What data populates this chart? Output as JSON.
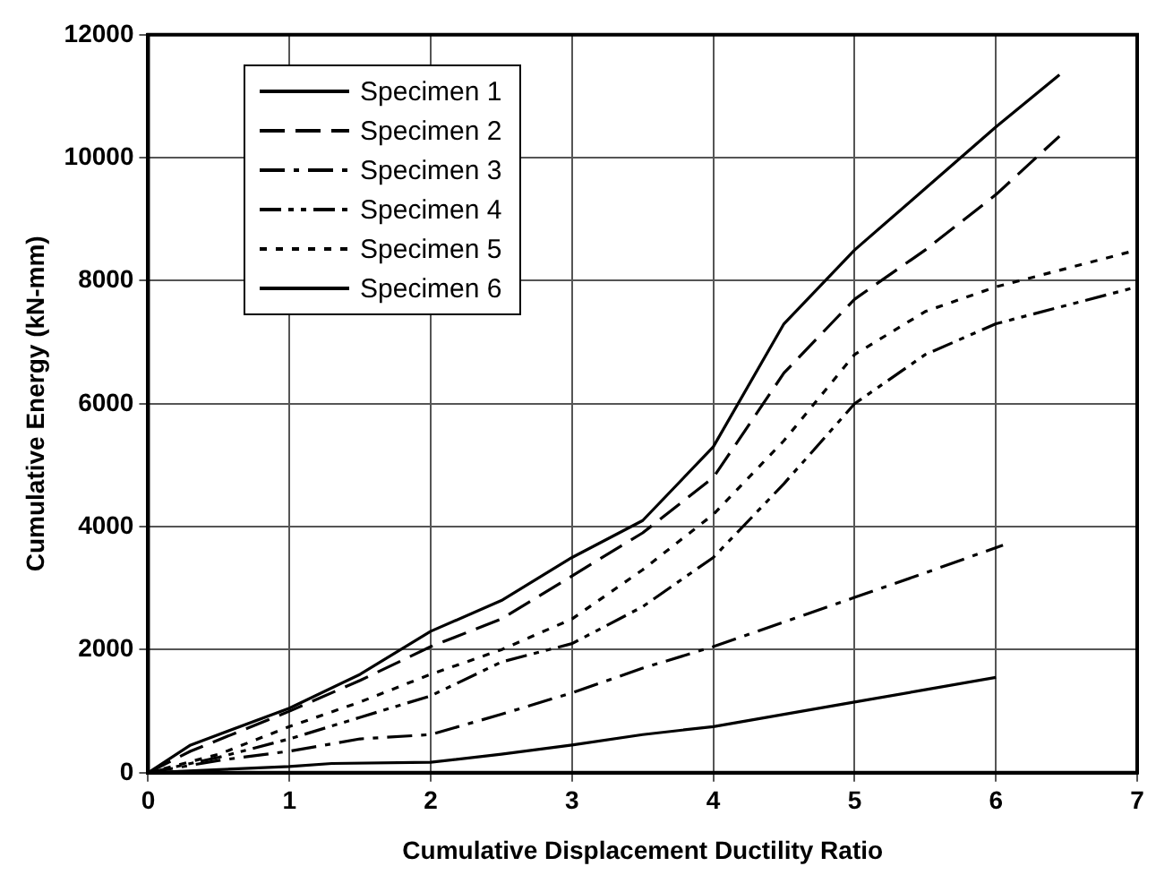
{
  "chart_data": {
    "type": "line",
    "xlabel": "Cumulative Displacement Ductility Ratio",
    "ylabel": "Cumulative Energy (kN-mm)",
    "xlim": [
      0,
      7
    ],
    "xticks": [
      0,
      1,
      2,
      3,
      4,
      5,
      6,
      7
    ],
    "ylim": [
      0,
      12000
    ],
    "yticks": [
      0,
      2000,
      4000,
      6000,
      8000,
      10000,
      12000
    ],
    "grid": true,
    "legend": "top left",
    "marker": "none",
    "series": [
      {
        "name": "Specimen 1",
        "color": "#000000",
        "line_style": "solid",
        "x": [
          0,
          0.5,
          1,
          1.3,
          2,
          2.5,
          3,
          3.5,
          4,
          4.5,
          5,
          5.5,
          6
        ],
        "values": [
          0,
          50,
          100,
          150,
          170,
          300,
          450,
          620,
          750,
          950,
          1150,
          1350,
          1550
        ]
      },
      {
        "name": "Specimen 2",
        "color": "#000000",
        "line_style": "dashed",
        "x": [
          0,
          0.3,
          1,
          1.5,
          2,
          2.5,
          3,
          3.5,
          4,
          4.5,
          5,
          5.5,
          6,
          6.45
        ],
        "values": [
          0,
          350,
          1000,
          1500,
          2050,
          2500,
          3200,
          3900,
          4800,
          6500,
          7700,
          8500,
          9400,
          10350
        ]
      },
      {
        "name": "Specimen 3",
        "color": "#000000",
        "line_style": "dashed",
        "x": [
          0,
          0.5,
          1,
          1.5,
          2,
          2.5,
          3,
          3.5,
          4,
          4.5,
          5,
          5.5,
          6.05
        ],
        "values": [
          0,
          200,
          350,
          550,
          620,
          950,
          1300,
          1700,
          2050,
          2450,
          2850,
          3250,
          3700
        ]
      },
      {
        "name": "Specimen 4",
        "color": "#000000",
        "line_style": "dashed",
        "x": [
          0,
          0.5,
          1,
          1.5,
          2,
          2.5,
          3,
          3.5,
          4,
          4.5,
          5,
          5.5,
          6,
          7
        ],
        "values": [
          0,
          250,
          550,
          900,
          1250,
          1800,
          2100,
          2700,
          3500,
          4700,
          6000,
          6800,
          7300,
          7900
        ]
      },
      {
        "name": "Specimen 5",
        "color": "#000000",
        "line_style": "dotted",
        "x": [
          0,
          0.5,
          1,
          1.5,
          2,
          2.5,
          3,
          3.5,
          4,
          4.5,
          5,
          5.5,
          6,
          7
        ],
        "values": [
          0,
          300,
          750,
          1150,
          1600,
          2000,
          2500,
          3300,
          4200,
          5400,
          6800,
          7500,
          7900,
          8500
        ]
      },
      {
        "name": "Specimen 6",
        "color": "#000000",
        "line_style": "solid",
        "x": [
          0,
          0.3,
          1,
          1.5,
          2,
          2.5,
          3,
          3.5,
          4,
          4.5,
          5,
          5.5,
          6,
          6.45
        ],
        "values": [
          0,
          450,
          1050,
          1600,
          2300,
          2800,
          3500,
          4100,
          5300,
          7300,
          8500,
          9500,
          10500,
          11350
        ]
      }
    ]
  }
}
